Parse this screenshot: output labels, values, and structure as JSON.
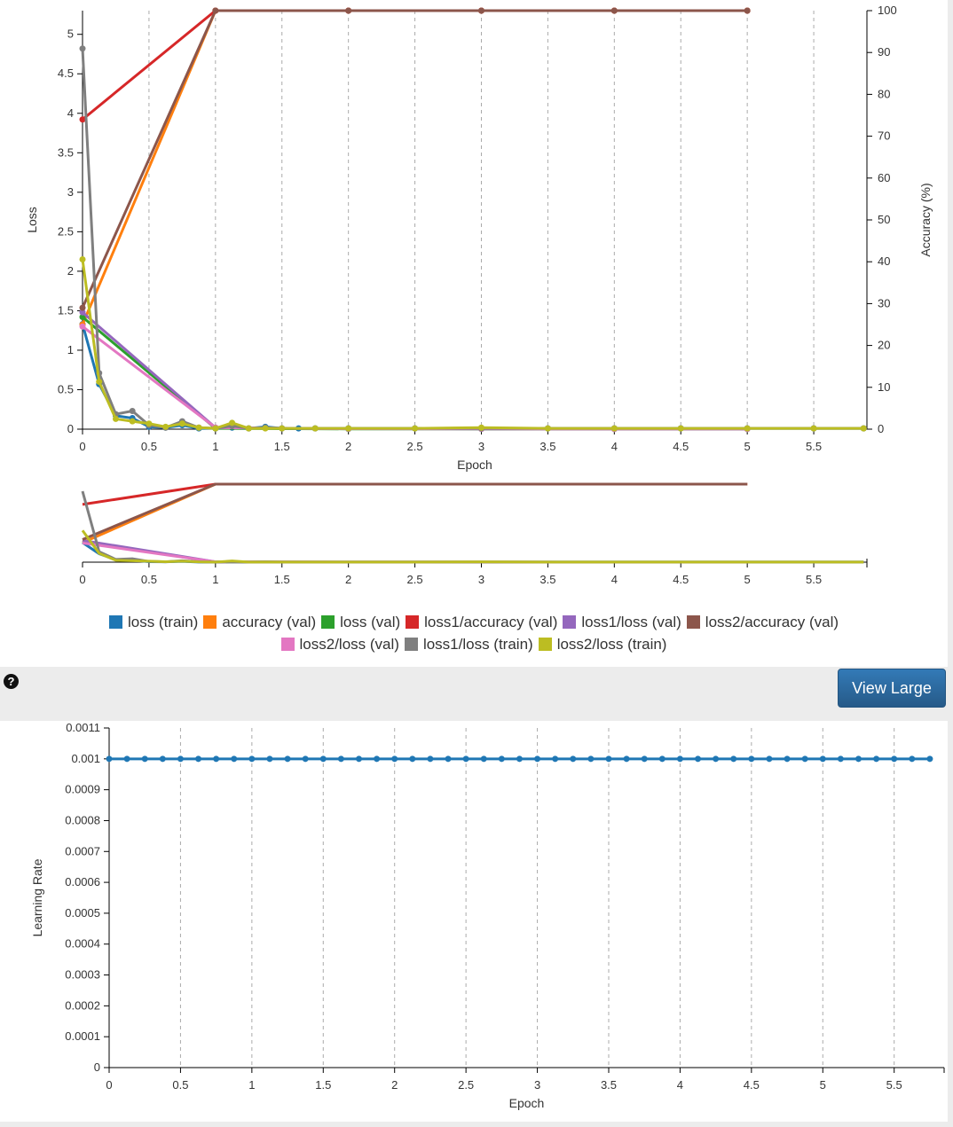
{
  "colors": {
    "loss (train)": "#1f77b4",
    "accuracy (val)": "#ff7f0e",
    "loss (val)": "#2ca02c",
    "loss1/accuracy (val)": "#d62728",
    "loss1/loss (val)": "#9467bd",
    "loss2/accuracy (val)": "#8c564b",
    "loss2/loss (val)": "#e377c2",
    "loss1/loss (train)": "#7f7f7f",
    "loss2/loss (train)": "#bcbd22"
  },
  "legend": [
    "loss (train)",
    "accuracy (val)",
    "loss (val)",
    "loss1/accuracy (val)",
    "loss1/loss (val)",
    "loss2/accuracy (val)",
    "loss2/loss (val)",
    "loss1/loss (train)",
    "loss2/loss (train)"
  ],
  "help_icon": "question-circle-icon",
  "view_large_label": "View Large",
  "chart_data": [
    {
      "type": "line",
      "title": "",
      "xlabel": "Epoch",
      "ylabel": "Loss",
      "y2label": "Accuracy (%)",
      "xlim": [
        0,
        5.9
      ],
      "ylim": [
        0,
        5.3
      ],
      "y2lim": [
        0,
        100
      ],
      "xticks": [
        "0",
        "0.5",
        "1",
        "1.5",
        "2",
        "2.5",
        "3",
        "3.5",
        "4",
        "4.5",
        "5",
        "5.5"
      ],
      "yticks": [
        "0",
        "0.5",
        "1",
        "1.5",
        "2",
        "2.5",
        "3",
        "3.5",
        "4",
        "4.5",
        "5"
      ],
      "y2ticks": [
        "0",
        "10",
        "20",
        "30",
        "40",
        "50",
        "60",
        "70",
        "80",
        "90",
        "100"
      ],
      "grid": "vertical dashed",
      "legend_position": "bottom",
      "series": [
        {
          "name": "loss (train)",
          "axis": "loss",
          "markers": true,
          "x": [
            0,
            0.125,
            0.25,
            0.375,
            0.5,
            0.625,
            0.75,
            0.875,
            1,
            1.125,
            1.25,
            1.375,
            1.5,
            1.625,
            1.75,
            2,
            2.5,
            3,
            3.5,
            4,
            4.5,
            5,
            5.5,
            5.875
          ],
          "y": [
            1.33,
            0.57,
            0.17,
            0.14,
            0.03,
            0.02,
            0.05,
            0.01,
            0.01,
            0.02,
            0.01,
            0.03,
            0.01,
            0.01,
            0.01,
            0.01,
            0.01,
            0.01,
            0.01,
            0.01,
            0.01,
            0.01,
            0.01,
            0.01
          ]
        },
        {
          "name": "accuracy (val)",
          "axis": "accuracy",
          "markers": true,
          "x": [
            0,
            1,
            2,
            3,
            4,
            5
          ],
          "y": [
            25,
            100,
            100,
            100,
            100,
            100
          ]
        },
        {
          "name": "loss (val)",
          "axis": "loss",
          "markers": true,
          "x": [
            0,
            1,
            2,
            3,
            4,
            5
          ],
          "y": [
            1.42,
            0.01,
            0.003,
            0.002,
            0.002,
            0.002
          ]
        },
        {
          "name": "loss1/accuracy (val)",
          "axis": "accuracy",
          "markers": true,
          "x": [
            0,
            1,
            2,
            3,
            4,
            5
          ],
          "y": [
            74,
            100,
            100,
            100,
            100,
            100
          ]
        },
        {
          "name": "loss1/loss (val)",
          "axis": "loss",
          "markers": true,
          "x": [
            0,
            1,
            2,
            3,
            4,
            5
          ],
          "y": [
            1.48,
            0.02,
            0.005,
            0.004,
            0.003,
            0.003
          ]
        },
        {
          "name": "loss2/accuracy (val)",
          "axis": "accuracy",
          "markers": true,
          "x": [
            0,
            1,
            2,
            3,
            4,
            5
          ],
          "y": [
            29,
            100,
            100,
            100,
            100,
            100
          ]
        },
        {
          "name": "loss2/loss (val)",
          "axis": "loss",
          "markers": true,
          "x": [
            0,
            1,
            2,
            3,
            4,
            5
          ],
          "y": [
            1.3,
            0.02,
            0.005,
            0.004,
            0.003,
            0.003
          ]
        },
        {
          "name": "loss1/loss (train)",
          "axis": "loss",
          "markers": true,
          "x": [
            0,
            0.125,
            0.25,
            0.375,
            0.5,
            0.625,
            0.75,
            0.875,
            1,
            1.125,
            1.25,
            1.375,
            1.5,
            1.75,
            2,
            2.5,
            3,
            3.5,
            4,
            4.5,
            5,
            5.5,
            5.875
          ],
          "y": [
            4.82,
            0.71,
            0.19,
            0.23,
            0.05,
            0.02,
            0.1,
            0.02,
            0.01,
            0.04,
            0.01,
            0.02,
            0.01,
            0.01,
            0.01,
            0.01,
            0.01,
            0.01,
            0.01,
            0.01,
            0.01,
            0.01,
            0.01
          ]
        },
        {
          "name": "loss2/loss (train)",
          "axis": "loss",
          "markers": true,
          "x": [
            0,
            0.125,
            0.25,
            0.375,
            0.5,
            0.625,
            0.75,
            0.875,
            1,
            1.125,
            1.25,
            1.375,
            1.5,
            1.75,
            2,
            2.5,
            3,
            3.5,
            4,
            4.5,
            5,
            5.5,
            5.875
          ],
          "y": [
            2.15,
            0.6,
            0.13,
            0.1,
            0.07,
            0.03,
            0.07,
            0.02,
            0.01,
            0.08,
            0.01,
            0.01,
            0.01,
            0.01,
            0.01,
            0.01,
            0.02,
            0.01,
            0.01,
            0.01,
            0.01,
            0.01,
            0.01
          ]
        }
      ]
    },
    {
      "type": "line",
      "title": "",
      "role": "overview",
      "xlim": [
        0,
        5.9
      ],
      "xticks": [
        "0",
        "0.5",
        "1",
        "1.5",
        "2",
        "2.5",
        "3",
        "3.5",
        "4",
        "4.5",
        "5",
        "5.5"
      ]
    },
    {
      "type": "line",
      "title": "",
      "xlabel": "Epoch",
      "ylabel": "Learning Rate",
      "xlim": [
        0,
        5.85
      ],
      "ylim": [
        0,
        0.0011
      ],
      "xticks": [
        "0",
        "0.5",
        "1",
        "1.5",
        "2",
        "2.5",
        "3",
        "3.5",
        "4",
        "4.5",
        "5",
        "5.5"
      ],
      "yticks": [
        "0",
        "0.0001",
        "0.0002",
        "0.0003",
        "0.0004",
        "0.0005",
        "0.0006",
        "0.0007",
        "0.0008",
        "0.0009",
        "0.001",
        "0.0011"
      ],
      "grid": "vertical dashed",
      "series": [
        {
          "name": "",
          "color": "#1f77b4",
          "x_start": 0,
          "x_step": 0.125,
          "x_end": 5.75,
          "value": 0.001
        }
      ]
    }
  ]
}
